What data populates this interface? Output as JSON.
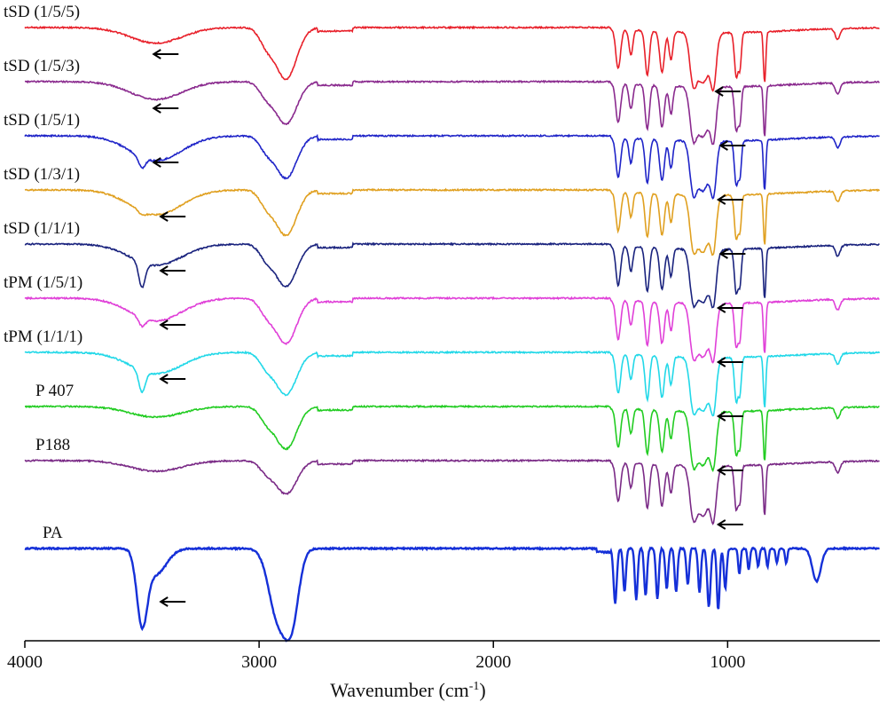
{
  "chart_data": {
    "type": "line",
    "title": "",
    "xlabel": "Wavenumber (cm",
    "xlabel_sup": "-1",
    "xlabel_tail": ")",
    "ylabel": "",
    "xlim": [
      4000,
      350
    ],
    "x_reversed": true,
    "x_ticks": [
      4000,
      3000,
      2000,
      1000
    ],
    "x_tick_labels": [
      "4000",
      "3000",
      "2000",
      "1000"
    ],
    "grid": false,
    "legend": "none",
    "annotation": "arrows mark the O-H band (~3400 cm-1) and the C-O band (~1100 cm-1)",
    "series": [
      {
        "name": "tSD (1/5/5)",
        "color": "#e8202a",
        "baseline_offset": 0,
        "oh_depth": 0.22,
        "oh_sharp": 0,
        "ch_depth": 0.85,
        "co_depth": 0.7,
        "arrow_oh": 3450,
        "arrow_co": 1050
      },
      {
        "name": "tSD (1/5/3)",
        "color": "#8a2a8e",
        "baseline_offset": 1,
        "oh_depth": 0.25,
        "oh_sharp": 0,
        "ch_depth": 0.7,
        "co_depth": 0.7,
        "arrow_oh": 3450,
        "arrow_co": 1030
      },
      {
        "name": "tSD (1/5/1)",
        "color": "#1f24c8",
        "baseline_offset": 2,
        "oh_depth": 0.35,
        "oh_sharp": 0.15,
        "ch_depth": 0.7,
        "co_depth": 0.7,
        "arrow_oh": 3450,
        "arrow_co": 1040
      },
      {
        "name": "tSD (1/3/1)",
        "color": "#e0a020",
        "baseline_offset": 3,
        "oh_depth": 0.35,
        "oh_sharp": 0.05,
        "ch_depth": 0.75,
        "co_depth": 0.8,
        "arrow_oh": 3420,
        "arrow_co": 1030
      },
      {
        "name": "tSD (1/1/1)",
        "color": "#1a237e",
        "baseline_offset": 4,
        "oh_depth": 0.3,
        "oh_sharp": 0.35,
        "ch_depth": 0.7,
        "co_depth": 0.75,
        "arrow_oh": 3420,
        "arrow_co": 1040
      },
      {
        "name": "tPM (1/5/1)",
        "color": "#e040d8",
        "baseline_offset": 5,
        "oh_depth": 0.32,
        "oh_sharp": 0.12,
        "ch_depth": 0.75,
        "co_depth": 0.75,
        "arrow_oh": 3420,
        "arrow_co": 1040
      },
      {
        "name": "tPM (1/1/1)",
        "color": "#22d8e8",
        "baseline_offset": 6,
        "oh_depth": 0.3,
        "oh_sharp": 0.3,
        "ch_depth": 0.7,
        "co_depth": 0.75,
        "arrow_oh": 3420,
        "arrow_co": 1040
      },
      {
        "name": "P 407",
        "color": "#22cc22",
        "baseline_offset": 7,
        "oh_depth": 0.15,
        "oh_sharp": 0,
        "ch_depth": 0.7,
        "co_depth": 0.75,
        "arrow_oh": null,
        "arrow_co": 1040
      },
      {
        "name": "P188",
        "color": "#7a2a86",
        "baseline_offset": 8,
        "oh_depth": 0.15,
        "oh_sharp": 0,
        "ch_depth": 0.55,
        "co_depth": 0.7,
        "arrow_oh": null,
        "arrow_co": 1040
      },
      {
        "name": "PA",
        "color": "#1530d8",
        "baseline_offset": 9,
        "oh_depth": 0.0,
        "oh_sharp": 1.0,
        "ch_depth": 1.0,
        "co_depth": 0.9,
        "arrow_oh": 3420,
        "arrow_co": null
      }
    ]
  }
}
